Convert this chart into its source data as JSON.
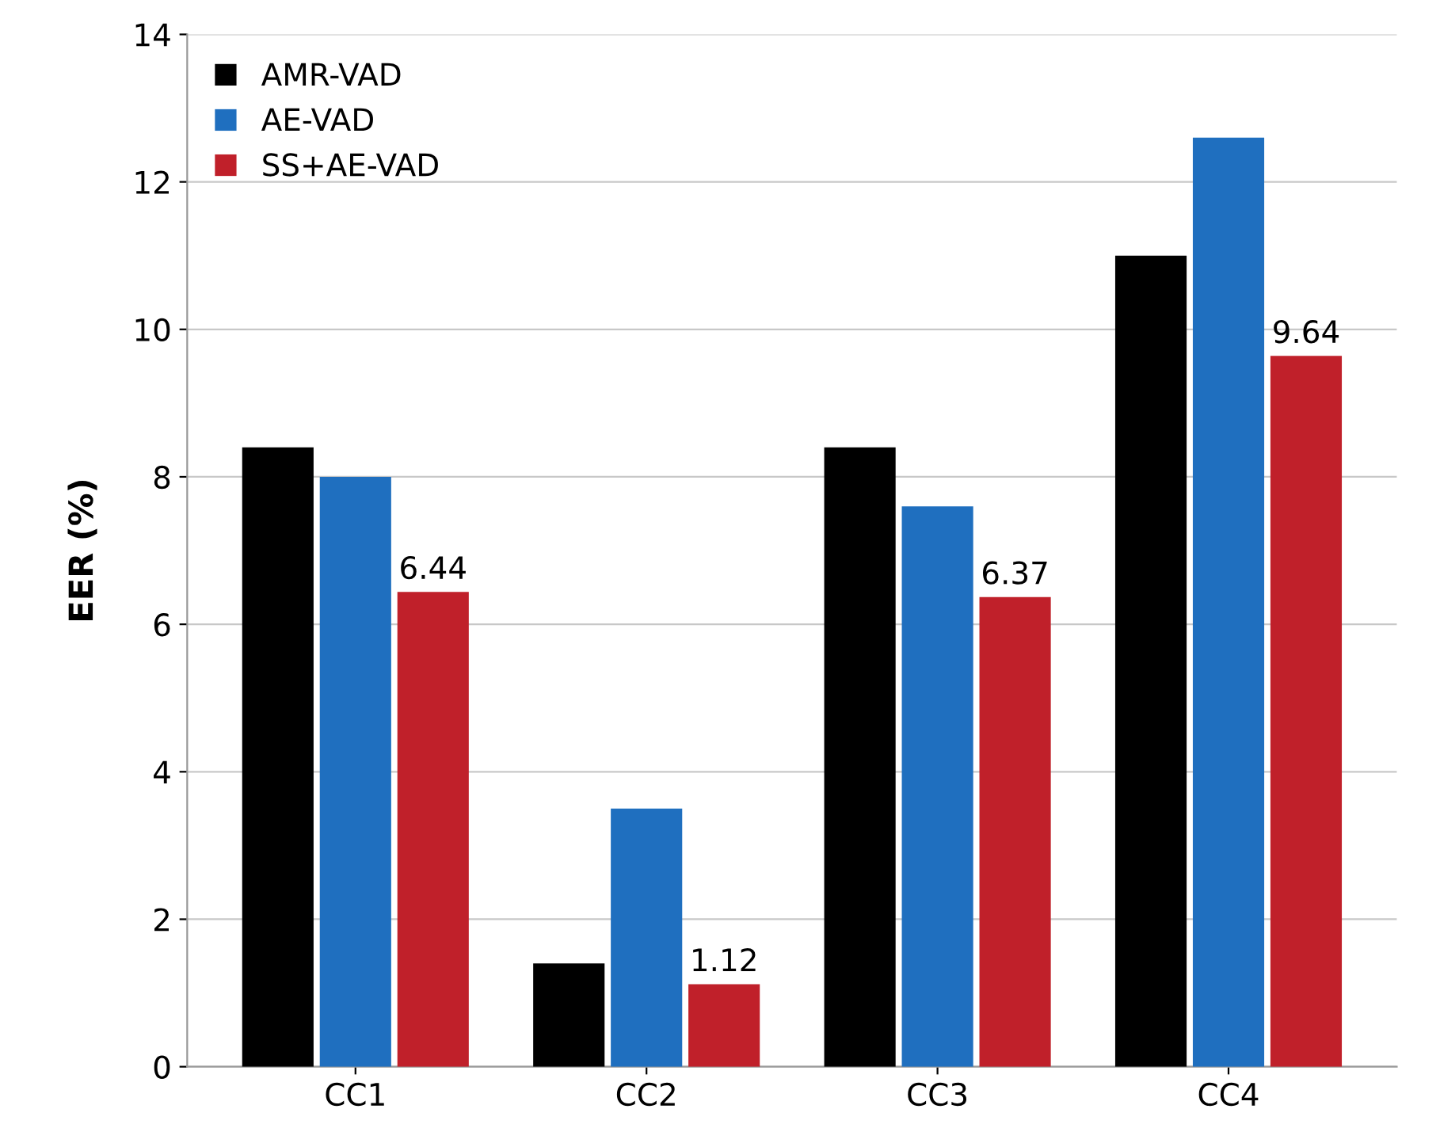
{
  "chart_data": {
    "type": "bar",
    "ylabel": "EER (%)",
    "categories": [
      "CC1",
      "CC2",
      "CC3",
      "CC4"
    ],
    "series": [
      {
        "name": "AMR-VAD",
        "color": "#000000",
        "values": [
          8.4,
          1.4,
          8.4,
          11.0
        ]
      },
      {
        "name": "AE-VAD",
        "color": "#1f6fbf",
        "values": [
          8.0,
          3.5,
          7.6,
          12.6
        ]
      },
      {
        "name": "SS+AE-VAD",
        "color": "#c0202a",
        "values": [
          6.44,
          1.12,
          6.37,
          9.64
        ],
        "value_labels": [
          "6.44",
          "1.12",
          "6.37",
          "9.64"
        ]
      }
    ],
    "ylim": [
      0,
      14
    ],
    "yticks": [
      0,
      2,
      4,
      6,
      8,
      10,
      12,
      14
    ],
    "grid": "y",
    "legend": "top left"
  }
}
